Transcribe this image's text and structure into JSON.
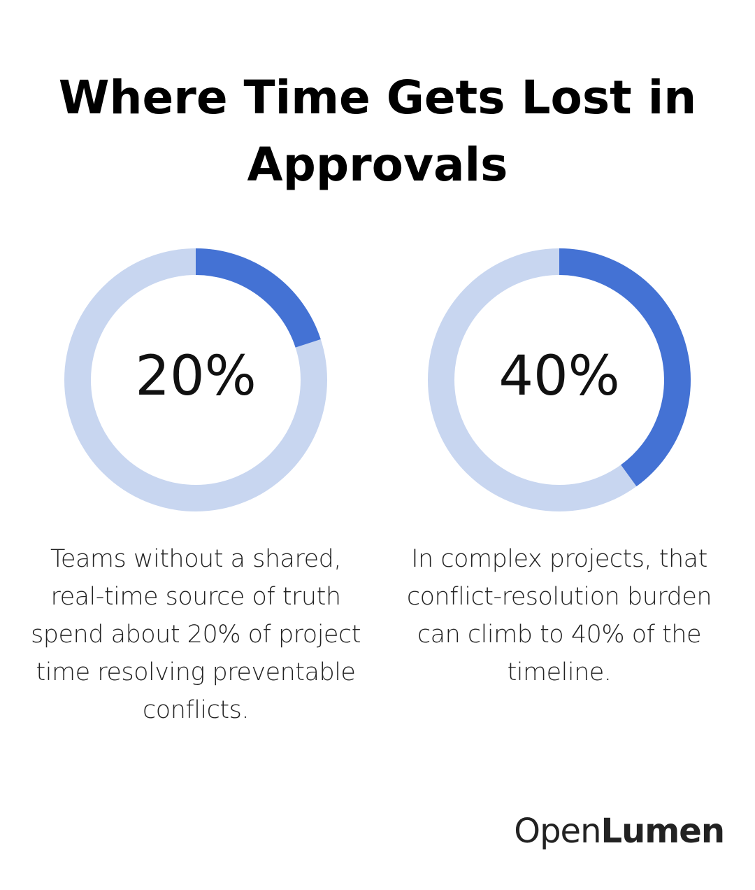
{
  "title": "Where Time Gets Lost in Approvals",
  "chart_data": [
    {
      "type": "donut",
      "values": [
        20
      ],
      "value_labels": [
        "20%"
      ],
      "color": "#4472d4",
      "track_color": "#c8d6f0",
      "caption": "Teams without a shared, real-time source of truth spend about 20% of project time resolving preventable conflicts."
    },
    {
      "type": "donut",
      "values": [
        40
      ],
      "value_labels": [
        "40%"
      ],
      "color": "#4472d4",
      "track_color": "#c8d6f0",
      "caption": "In complex projects, that conflict-resolution burden can climb to 40% of the timeline."
    }
  ],
  "logo": {
    "light": "Open",
    "bold": "Lumen"
  }
}
